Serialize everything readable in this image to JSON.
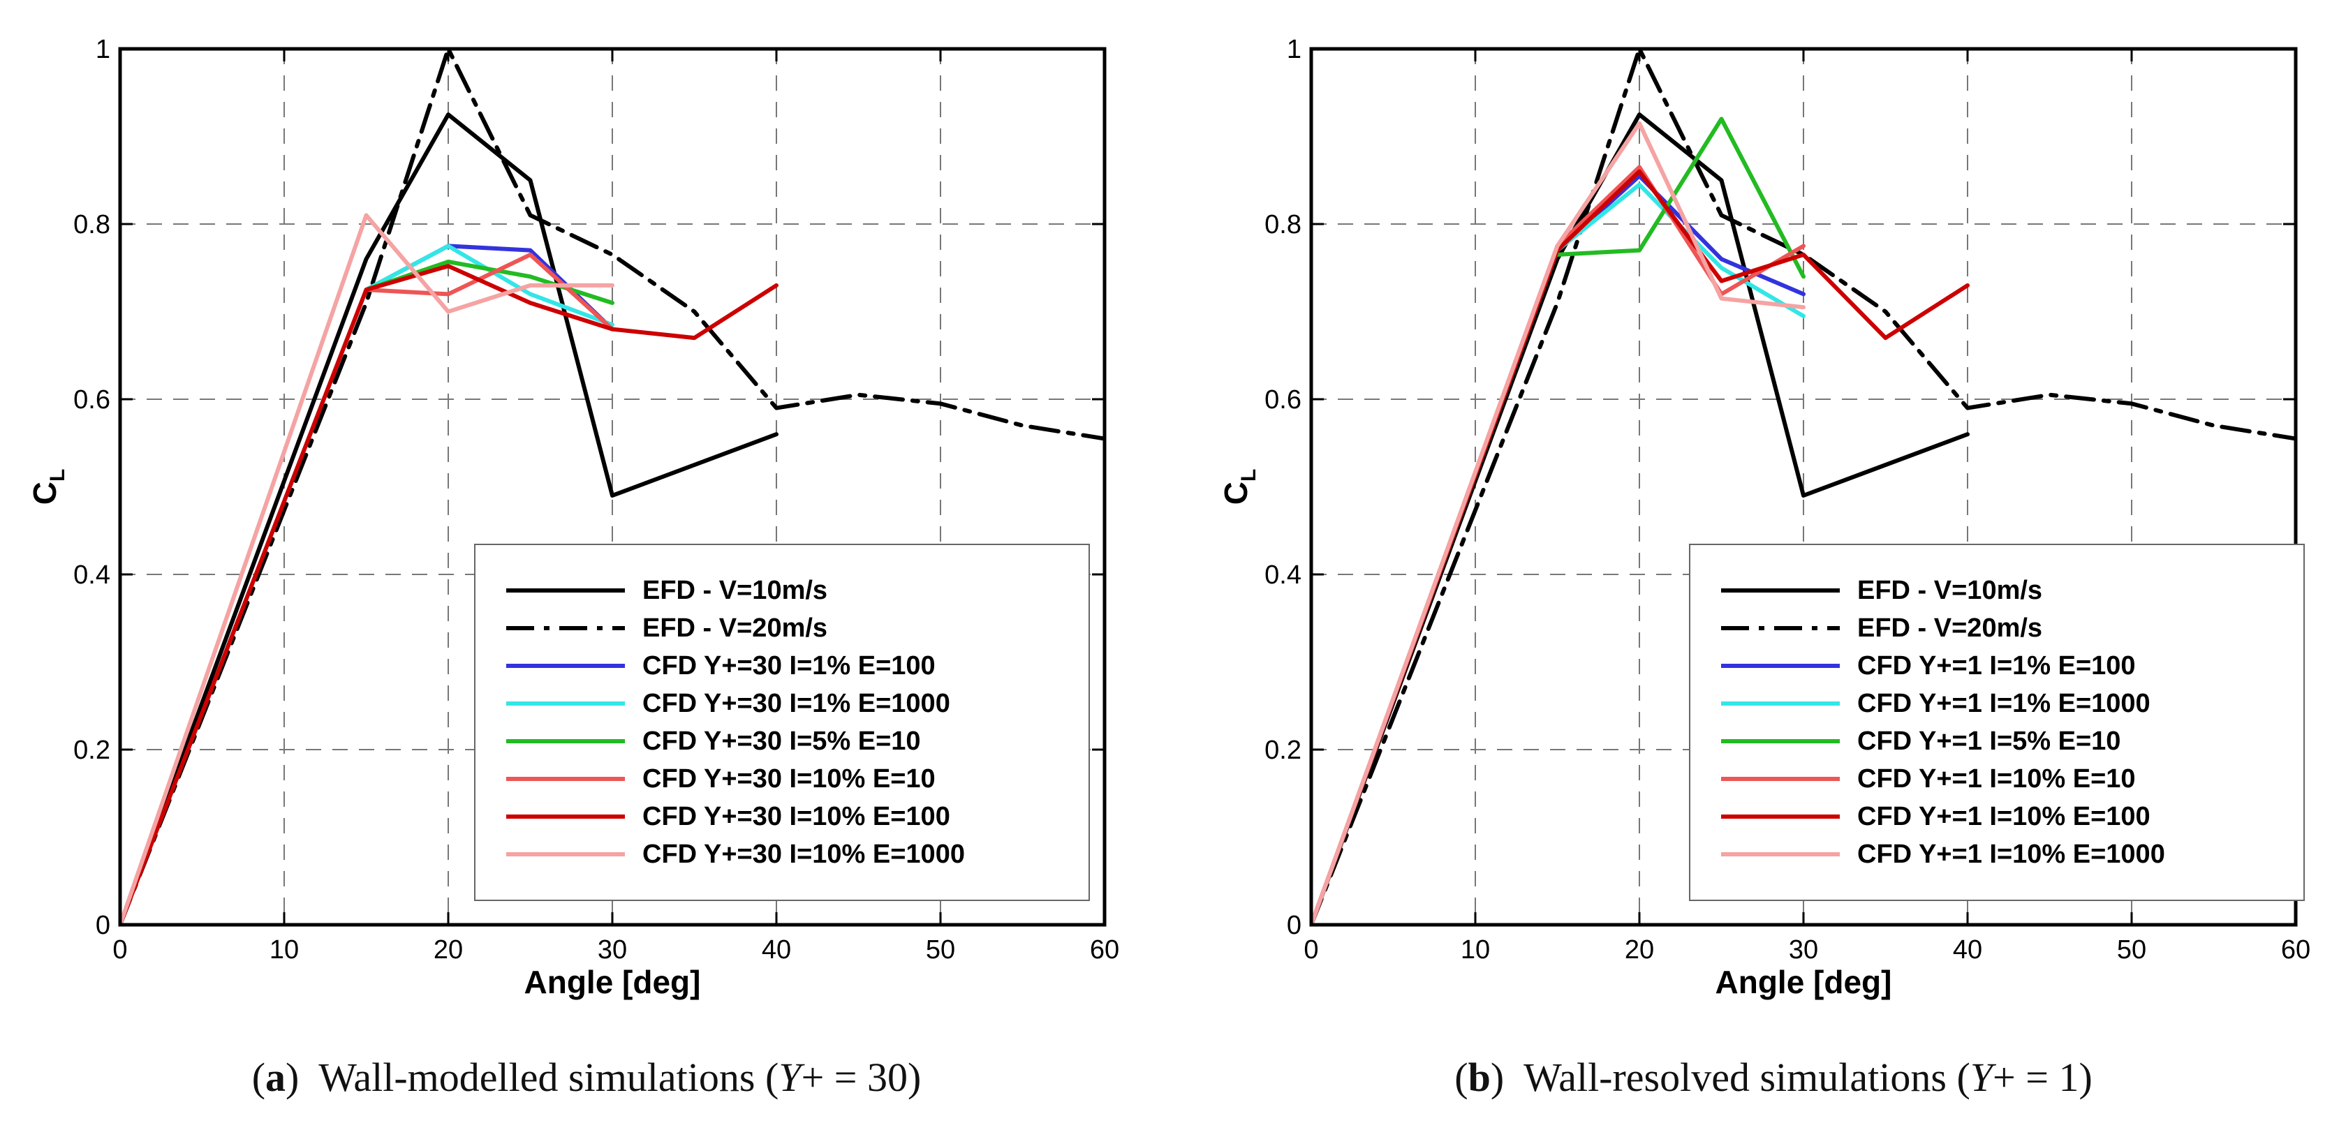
{
  "figure": {
    "captions": [
      {
        "label": "a",
        "text": "Wall-modelled simulations (",
        "var": "Y",
        "rest": "+ = 30)"
      },
      {
        "label": "b",
        "text": "Wall-resolved simulations (",
        "var": "Y",
        "rest": "+ = 1)"
      }
    ]
  },
  "chart_data": [
    {
      "type": "line",
      "id": "a",
      "xlabel": "Angle [deg]",
      "ylabel": "C",
      "ylabel_sub": "L",
      "xlim": [
        0,
        60
      ],
      "ylim": [
        0,
        1
      ],
      "xticks": [
        0,
        10,
        20,
        30,
        40,
        50,
        60
      ],
      "yticks": [
        0,
        0.2,
        0.4,
        0.6,
        0.8,
        1
      ],
      "ytick_labels": [
        "0",
        "0.2",
        "0.4",
        "0.6",
        "0.8",
        "1"
      ],
      "grid": true,
      "legend_position": "bottom-right",
      "series": [
        {
          "name": "EFD - V=10m/s",
          "color": "#000000",
          "dash": "solid",
          "x": [
            0,
            15,
            20,
            25,
            30,
            40
          ],
          "y": [
            0,
            0.76,
            0.925,
            0.85,
            0.49,
            0.56
          ]
        },
        {
          "name": "EFD - V=20m/s",
          "color": "#000000",
          "dash": "dashdot",
          "x": [
            0,
            15,
            20,
            25,
            30,
            35,
            40,
            45,
            50,
            55,
            60
          ],
          "y": [
            0,
            0.71,
            1.0,
            0.81,
            0.765,
            0.7,
            0.59,
            0.605,
            0.595,
            0.57,
            0.555
          ]
        },
        {
          "name": "CFD Y+=30 I=1% E=100",
          "color": "#3333dd",
          "dash": "solid",
          "x": [
            15,
            20,
            25,
            30
          ],
          "y": [
            0.725,
            0.775,
            0.77,
            0.68
          ]
        },
        {
          "name": "CFD Y+=30 I=1% E=1000",
          "color": "#33e6e6",
          "dash": "solid",
          "x": [
            15,
            20,
            25,
            30
          ],
          "y": [
            0.725,
            0.775,
            0.72,
            0.685
          ]
        },
        {
          "name": "CFD Y+=30 I=5% E=10",
          "color": "#22bb22",
          "dash": "solid",
          "x": [
            15,
            20,
            25,
            30
          ],
          "y": [
            0.725,
            0.757,
            0.74,
            0.71
          ]
        },
        {
          "name": "CFD Y+=30 I=10% E=10",
          "color": "#ee5555",
          "dash": "solid",
          "x": [
            15,
            20,
            25,
            30
          ],
          "y": [
            0.725,
            0.72,
            0.765,
            0.68
          ]
        },
        {
          "name": "CFD Y+=30 I=10% E=100",
          "color": "#cc0000",
          "dash": "solid",
          "x": [
            0,
            15,
            20,
            25,
            30,
            35,
            40
          ],
          "y": [
            0,
            0.725,
            0.752,
            0.71,
            0.68,
            0.67,
            0.73
          ]
        },
        {
          "name": "CFD Y+=30 I=10% E=1000",
          "color": "#f5a3a3",
          "dash": "solid",
          "x": [
            0,
            15,
            20,
            25,
            30
          ],
          "y": [
            0,
            0.81,
            0.7,
            0.73,
            0.73
          ]
        }
      ]
    },
    {
      "type": "line",
      "id": "b",
      "xlabel": "Angle [deg]",
      "ylabel": "C",
      "ylabel_sub": "L",
      "xlim": [
        0,
        60
      ],
      "ylim": [
        0,
        1
      ],
      "xticks": [
        0,
        10,
        20,
        30,
        40,
        50,
        60
      ],
      "yticks": [
        0,
        0.2,
        0.4,
        0.6,
        0.8,
        1
      ],
      "ytick_labels": [
        "0",
        "0.2",
        "0.4",
        "0.6",
        "0.8",
        "1"
      ],
      "grid": true,
      "legend_position": "bottom-right",
      "series": [
        {
          "name": "EFD - V=10m/s",
          "color": "#000000",
          "dash": "solid",
          "x": [
            0,
            15,
            20,
            25,
            30,
            40
          ],
          "y": [
            0,
            0.76,
            0.925,
            0.85,
            0.49,
            0.56
          ]
        },
        {
          "name": "EFD - V=20m/s",
          "color": "#000000",
          "dash": "dashdot",
          "x": [
            0,
            15,
            20,
            25,
            30,
            35,
            40,
            45,
            50,
            55,
            60
          ],
          "y": [
            0,
            0.71,
            1.0,
            0.81,
            0.765,
            0.7,
            0.59,
            0.605,
            0.595,
            0.57,
            0.555
          ]
        },
        {
          "name": "CFD Y+=1 I=1% E=100",
          "color": "#3333dd",
          "dash": "solid",
          "x": [
            0,
            15,
            20,
            25,
            30
          ],
          "y": [
            0,
            0.77,
            0.855,
            0.76,
            0.72
          ]
        },
        {
          "name": "CFD Y+=1 I=1% E=1000",
          "color": "#33e6e6",
          "dash": "solid",
          "x": [
            0,
            15,
            20,
            25,
            30
          ],
          "y": [
            0,
            0.77,
            0.845,
            0.75,
            0.695
          ]
        },
        {
          "name": "CFD Y+=1 I=5% E=10",
          "color": "#22bb22",
          "dash": "solid",
          "x": [
            15,
            20,
            25,
            30
          ],
          "y": [
            0.765,
            0.77,
            0.92,
            0.74
          ]
        },
        {
          "name": "CFD Y+=1 I=10% E=10",
          "color": "#ee5555",
          "dash": "solid",
          "x": [
            0,
            15,
            20,
            25,
            30
          ],
          "y": [
            0,
            0.775,
            0.865,
            0.72,
            0.775
          ]
        },
        {
          "name": "CFD Y+=1 I=10% E=100",
          "color": "#cc0000",
          "dash": "solid",
          "x": [
            0,
            15,
            20,
            25,
            30,
            35,
            40
          ],
          "y": [
            0,
            0.77,
            0.86,
            0.735,
            0.765,
            0.67,
            0.73
          ]
        },
        {
          "name": "CFD Y+=1 I=10% E=1000",
          "color": "#f5a3a3",
          "dash": "solid",
          "x": [
            0,
            15,
            20,
            25,
            30
          ],
          "y": [
            0,
            0.775,
            0.915,
            0.715,
            0.705
          ]
        }
      ]
    }
  ]
}
